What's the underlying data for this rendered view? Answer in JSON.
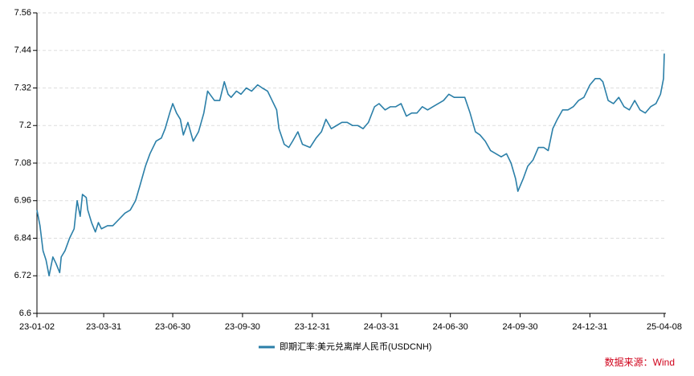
{
  "chart_data": {
    "type": "line",
    "x": [
      "23-01-02",
      "23-01-06",
      "23-01-10",
      "23-01-14",
      "23-01-18",
      "23-01-23",
      "23-01-27",
      "23-02-01",
      "23-02-03",
      "23-02-08",
      "23-02-14",
      "23-02-20",
      "23-02-24",
      "23-02-28",
      "23-03-03",
      "23-03-08",
      "23-03-10",
      "23-03-15",
      "23-03-20",
      "23-03-24",
      "23-03-28",
      "23-04-05",
      "23-04-12",
      "23-04-20",
      "23-04-28",
      "23-05-05",
      "23-05-12",
      "23-05-18",
      "23-05-25",
      "23-05-31",
      "23-06-08",
      "23-06-15",
      "23-06-20",
      "23-06-26",
      "23-06-30",
      "23-07-05",
      "23-07-10",
      "23-07-14",
      "23-07-20",
      "23-07-27",
      "23-08-03",
      "23-08-10",
      "23-08-15",
      "23-08-18",
      "23-08-24",
      "23-08-31",
      "23-09-06",
      "23-09-11",
      "23-09-15",
      "23-09-22",
      "23-09-28",
      "23-10-05",
      "23-10-12",
      "23-10-20",
      "23-10-26",
      "23-11-02",
      "23-11-08",
      "23-11-14",
      "23-11-17",
      "23-11-24",
      "23-11-30",
      "23-12-05",
      "23-12-12",
      "23-12-18",
      "23-12-28",
      "24-01-05",
      "24-01-12",
      "24-01-18",
      "24-01-25",
      "24-02-01",
      "24-02-08",
      "24-02-15",
      "24-02-22",
      "24-02-29",
      "24-03-07",
      "24-03-14",
      "24-03-22",
      "24-03-28",
      "24-04-05",
      "24-04-12",
      "24-04-19",
      "24-04-26",
      "24-05-03",
      "24-05-10",
      "24-05-17",
      "24-05-24",
      "24-05-31",
      "24-06-07",
      "24-06-14",
      "24-06-21",
      "24-06-28",
      "24-07-05",
      "24-07-12",
      "24-07-19",
      "24-07-26",
      "24-08-02",
      "24-08-08",
      "24-08-15",
      "24-08-22",
      "24-08-29",
      "24-09-05",
      "24-09-12",
      "24-09-18",
      "24-09-24",
      "24-09-27",
      "24-10-04",
      "24-10-10",
      "24-10-17",
      "24-10-24",
      "24-10-31",
      "24-11-06",
      "24-11-12",
      "24-11-18",
      "24-11-25",
      "24-12-02",
      "24-12-09",
      "24-12-16",
      "24-12-23",
      "24-12-31",
      "25-01-07",
      "25-01-13",
      "25-01-17",
      "25-01-24",
      "25-01-31",
      "25-02-07",
      "25-02-14",
      "25-02-21",
      "25-02-28",
      "25-03-07",
      "25-03-14",
      "25-03-21",
      "25-03-28",
      "25-04-03",
      "25-04-07",
      "25-04-08"
    ],
    "series": [
      {
        "name": "即期汇率:美元兑离岸人民币(USDCNH)",
        "color": "#2b7fa8",
        "values": [
          6.93,
          6.88,
          6.8,
          6.77,
          6.72,
          6.78,
          6.76,
          6.73,
          6.78,
          6.8,
          6.84,
          6.87,
          6.96,
          6.91,
          6.98,
          6.97,
          6.93,
          6.89,
          6.86,
          6.89,
          6.87,
          6.88,
          6.88,
          6.9,
          6.92,
          6.93,
          6.96,
          7.01,
          7.07,
          7.11,
          7.15,
          7.16,
          7.19,
          7.24,
          7.27,
          7.24,
          7.22,
          7.17,
          7.21,
          7.15,
          7.18,
          7.24,
          7.31,
          7.3,
          7.28,
          7.28,
          7.34,
          7.3,
          7.29,
          7.31,
          7.3,
          7.32,
          7.31,
          7.33,
          7.32,
          7.31,
          7.28,
          7.25,
          7.19,
          7.14,
          7.13,
          7.15,
          7.18,
          7.14,
          7.13,
          7.16,
          7.18,
          7.22,
          7.19,
          7.2,
          7.21,
          7.21,
          7.2,
          7.2,
          7.19,
          7.21,
          7.26,
          7.27,
          7.25,
          7.26,
          7.26,
          7.27,
          7.23,
          7.24,
          7.24,
          7.26,
          7.25,
          7.26,
          7.27,
          7.28,
          7.3,
          7.29,
          7.29,
          7.29,
          7.24,
          7.18,
          7.17,
          7.15,
          7.12,
          7.11,
          7.1,
          7.11,
          7.08,
          7.03,
          6.99,
          7.03,
          7.07,
          7.09,
          7.13,
          7.13,
          7.12,
          7.19,
          7.22,
          7.25,
          7.25,
          7.26,
          7.28,
          7.29,
          7.33,
          7.35,
          7.35,
          7.34,
          7.28,
          7.27,
          7.29,
          7.26,
          7.25,
          7.28,
          7.25,
          7.24,
          7.26,
          7.27,
          7.3,
          7.35,
          7.43
        ]
      }
    ],
    "xlim": [
      "23-01-02",
      "25-04-08"
    ],
    "xticks": [
      "23-01-02",
      "23-03-31",
      "23-06-30",
      "23-09-30",
      "23-12-31",
      "24-03-31",
      "24-06-30",
      "24-09-30",
      "24-12-31",
      "25-04-08"
    ],
    "ylim": [
      6.6,
      7.56
    ],
    "yticks": [
      6.6,
      6.72,
      6.84,
      6.96,
      7.08,
      7.2,
      7.32,
      7.44,
      7.56
    ],
    "grid": true,
    "legend": "bottom",
    "source": "数据来源：Wind"
  }
}
